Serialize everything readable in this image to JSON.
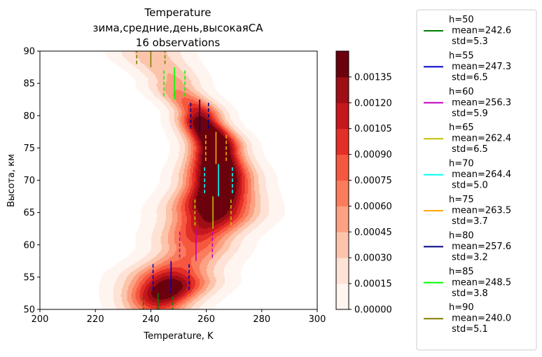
{
  "chart_data": {
    "type": "contour",
    "title": [
      "Temperature",
      "зима,средние,день,высокаяСА",
      "16 observations"
    ],
    "xlabel": "Temperature, K",
    "ylabel": "Высота, км",
    "xlim": [
      200,
      300
    ],
    "ylim": [
      50,
      90
    ],
    "xticks": [
      200,
      220,
      240,
      260,
      280,
      300
    ],
    "yticks": [
      50,
      55,
      60,
      65,
      70,
      75,
      80,
      85,
      90
    ],
    "colorbar": {
      "range": [
        0,
        0.00135
      ],
      "ticks": [
        "0.00000",
        "0.00015",
        "0.00030",
        "0.00045",
        "0.00060",
        "0.00075",
        "0.00090",
        "0.00105",
        "0.00120",
        "0.00135"
      ],
      "colors": [
        "#fff5f0",
        "#fee2d6",
        "#fcc5ab",
        "#fca183",
        "#fb7c5c",
        "#f6573f",
        "#e32f27",
        "#c5171c",
        "#9f0e15",
        "#6c010e"
      ]
    },
    "grid": false,
    "legend_position": "right",
    "series": [
      {
        "name": "h=50\n mean=242.6\n std=5.3",
        "h": 50,
        "mean": 242.6,
        "std": 5.3,
        "color": "#008000"
      },
      {
        "name": "h=55\n mean=247.3\n std=6.5",
        "h": 55,
        "mean": 247.3,
        "std": 6.5,
        "color": "#0000cd"
      },
      {
        "name": "h=60\n mean=256.3\n std=5.9",
        "h": 60,
        "mean": 256.3,
        "std": 5.9,
        "color": "#c000c0"
      },
      {
        "name": "h=65\n mean=262.4\n std=6.5",
        "h": 65,
        "mean": 262.4,
        "std": 6.5,
        "color": "#bfbf00"
      },
      {
        "name": "h=70\n mean=264.4\n std=5.0",
        "h": 70,
        "mean": 264.4,
        "std": 5.0,
        "color": "#00ffff"
      },
      {
        "name": "h=75\n mean=263.5\n std=3.7",
        "h": 75,
        "mean": 263.5,
        "std": 3.7,
        "color": "#ffa500"
      },
      {
        "name": "h=80\n mean=257.6\n std=3.2",
        "h": 80,
        "mean": 257.6,
        "std": 3.2,
        "color": "#000080"
      },
      {
        "name": "h=85\n mean=248.5\n std=3.8",
        "h": 85,
        "mean": 248.5,
        "std": 3.8,
        "color": "#00ff00"
      },
      {
        "name": "h=90\n mean=240.0\n std=5.1",
        "h": 90,
        "mean": 240.0,
        "std": 5.1,
        "color": "#808000"
      }
    ]
  }
}
